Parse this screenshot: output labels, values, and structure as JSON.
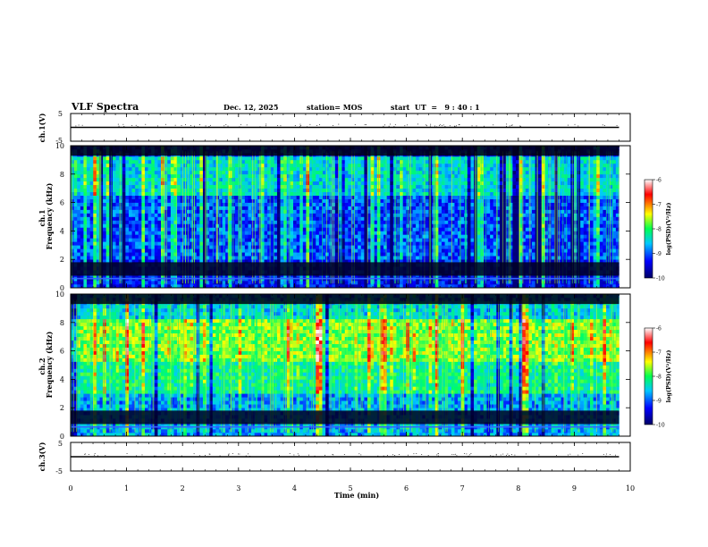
{
  "header": {
    "title": "VLF Spectra",
    "date": "Dec. 12, 2025",
    "station": "station= MOS",
    "start": "start  UT  =   9 : 40 : 1"
  },
  "chart_data": [
    {
      "type": "line",
      "ylabel": "ch.1(V)",
      "ylim": [
        -5,
        5
      ],
      "yticklabels": [
        "5",
        "-5"
      ],
      "series": [
        {
          "x": [
            0,
            9.8
          ],
          "values": [
            0,
            0
          ]
        }
      ]
    },
    {
      "type": "heatmap",
      "ylabel_top": "ch.1",
      "ylabel": "Frequency (kHz)",
      "ylim": [
        0,
        10
      ],
      "yticks": [
        0,
        2,
        4,
        6,
        8,
        10
      ],
      "xlim": [
        0,
        10
      ],
      "data_end_min": 9.8,
      "colorbar": {
        "label": "log(PSD)(V²/Hz)",
        "range": [
          -10,
          -6
        ],
        "ticks": [
          -10,
          -9,
          -8,
          -7,
          -6
        ]
      }
    },
    {
      "type": "heatmap",
      "ylabel_top": "ch.2",
      "ylabel": "Frequency (kHz)",
      "ylim": [
        0,
        10
      ],
      "yticks": [
        0,
        2,
        4,
        6,
        8,
        10
      ],
      "xlim": [
        0,
        10
      ],
      "data_end_min": 9.8,
      "colorbar": {
        "label": "log(PSD)(V²/Hz)",
        "range": [
          -10,
          -6
        ],
        "ticks": [
          -10,
          -9,
          -8,
          -7,
          -6
        ]
      }
    },
    {
      "type": "line",
      "ylabel": "ch.3(V)",
      "ylim": [
        -5,
        5
      ],
      "yticklabels": [
        "5",
        "-5"
      ],
      "series": [
        {
          "x": [
            0,
            9.8
          ],
          "values": [
            0,
            0
          ]
        }
      ]
    }
  ],
  "xaxis": {
    "label": "Time (min)",
    "ticks": [
      0,
      1,
      2,
      3,
      4,
      5,
      6,
      7,
      8,
      9,
      10
    ],
    "ticklabels": [
      "0",
      "1",
      "2",
      "3",
      "4",
      "5",
      "6",
      "7",
      "8",
      "9",
      "10"
    ]
  },
  "colors": {
    "colormap": [
      "#00007a",
      "#0000ff",
      "#00c8ff",
      "#00ff64",
      "#ffff00",
      "#ff0000",
      "#ffffff"
    ]
  }
}
